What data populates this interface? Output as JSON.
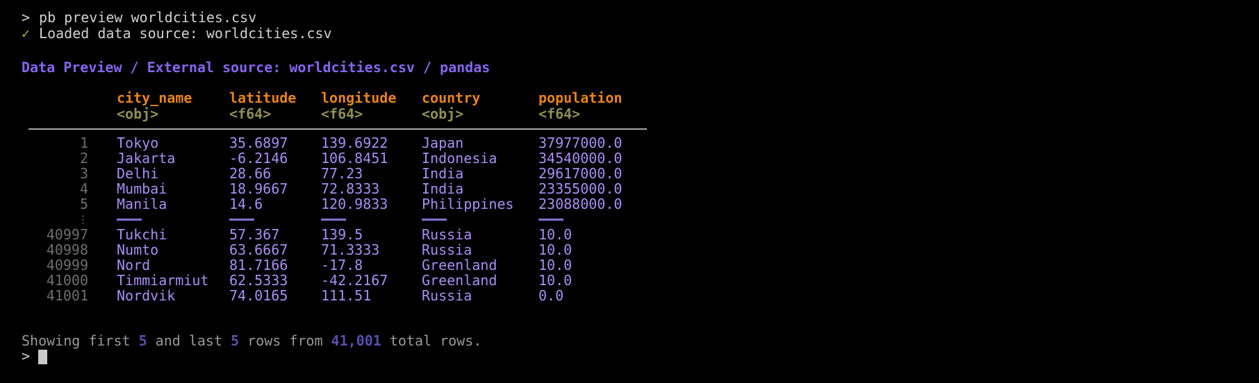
{
  "terminal": {
    "command_line": {
      "prompt": ">",
      "command": "pb preview worldcities.csv"
    },
    "status_line": {
      "icon": "✓",
      "text": "Loaded data source: worldcities.csv"
    },
    "title": "Data Preview / External source: worldcities.csv / pandas",
    "table": {
      "columns": [
        {
          "name": "city_name",
          "type": "<obj>"
        },
        {
          "name": "latitude",
          "type": "<f64>"
        },
        {
          "name": "longitude",
          "type": "<f64>"
        },
        {
          "name": "country",
          "type": "<obj>"
        },
        {
          "name": "population",
          "type": "<f64>"
        }
      ],
      "head_rows": [
        {
          "n": "1",
          "cells": [
            "Tokyo",
            "35.6897",
            "139.6922",
            "Japan",
            "37977000.0"
          ]
        },
        {
          "n": "2",
          "cells": [
            "Jakarta",
            "-6.2146",
            "106.8451",
            "Indonesia",
            "34540000.0"
          ]
        },
        {
          "n": "3",
          "cells": [
            "Delhi",
            "28.66",
            "77.23",
            "India",
            "29617000.0"
          ]
        },
        {
          "n": "4",
          "cells": [
            "Mumbai",
            "18.9667",
            "72.8333",
            "India",
            "23355000.0"
          ]
        },
        {
          "n": "5",
          "cells": [
            "Manila",
            "14.6",
            "120.9833",
            "Philippines",
            "23088000.0"
          ]
        }
      ],
      "gap_marker": "⋮",
      "tail_rows": [
        {
          "n": "40997",
          "cells": [
            "Tukchi",
            "57.367",
            "139.5",
            "Russia",
            "10.0"
          ]
        },
        {
          "n": "40998",
          "cells": [
            "Numto",
            "63.6667",
            "71.3333",
            "Russia",
            "10.0"
          ]
        },
        {
          "n": "40999",
          "cells": [
            "Nord",
            "81.7166",
            "-17.8",
            "Greenland",
            "10.0"
          ]
        },
        {
          "n": "41000",
          "cells": [
            "Timmiarmiut",
            "62.5333",
            "-42.2167",
            "Greenland",
            "10.0"
          ]
        },
        {
          "n": "41001",
          "cells": [
            "Nordvik",
            "74.0165",
            "111.51",
            "Russia",
            "0.0"
          ]
        }
      ]
    },
    "footer": {
      "prefix": "Showing first ",
      "n1": "5",
      "mid1": " and last ",
      "n2": "5",
      "mid2": " rows from ",
      "total": "41,001",
      "suffix": " total rows."
    },
    "input_prompt": ">",
    "colors": {
      "background": "#000000",
      "command_text": "#d2d2d2",
      "check_green": "#9fbb2b",
      "title_purple": "#8765f0",
      "header_orange": "#e8831c",
      "type_olive": "#8f8f55",
      "row_number_gray": "#6f6f6f",
      "data_purple": "#a98ff3",
      "gap_dash_purple": "#8273cf",
      "footer_gray": "#999999",
      "footer_number_purple": "#5a4eae",
      "rule_gray": "#a9a9a9",
      "cursor_gray": "#c9c9c9"
    }
  }
}
